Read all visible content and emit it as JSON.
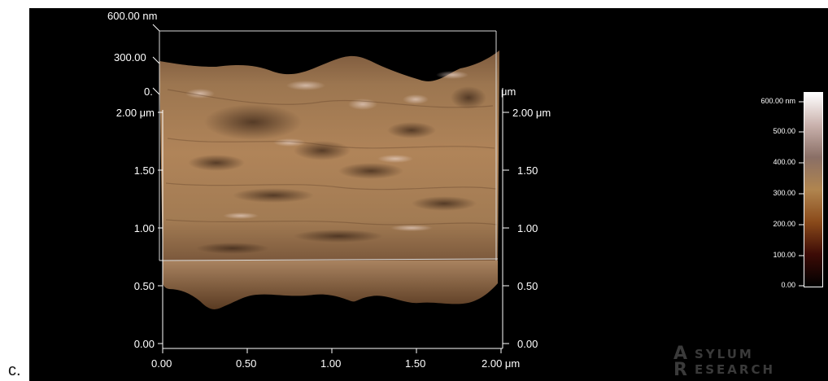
{
  "panel_label": "c.",
  "z_axis": {
    "top": "600.00 nm",
    "mid": "300.00",
    "low": "0."
  },
  "y_axis_left": [
    "2.00 μm",
    "1.50",
    "1.00",
    "0.50",
    "0.00"
  ],
  "y_axis_right": [
    "2.00 μm",
    "1.50",
    "1.00",
    "0.50",
    "0.00"
  ],
  "right_partial_unit": "μm",
  "x_axis": [
    "0.00",
    "0.50",
    "1.00",
    "1.50",
    "2.00 μm"
  ],
  "colorbar": {
    "ticks": [
      "600.00 nm",
      "500.00",
      "400.00",
      "300.00",
      "200.00",
      "100.00",
      "0.00"
    ],
    "colors": [
      "#ffffff",
      "#cab2ad",
      "#8a6f66",
      "#b0854f",
      "#8a4a1a",
      "#3d0b06",
      "#000000"
    ]
  },
  "logo": {
    "line1": "SYLUM",
    "line2": "ESEARCH",
    "mark1": "A",
    "mark2": "R"
  }
}
